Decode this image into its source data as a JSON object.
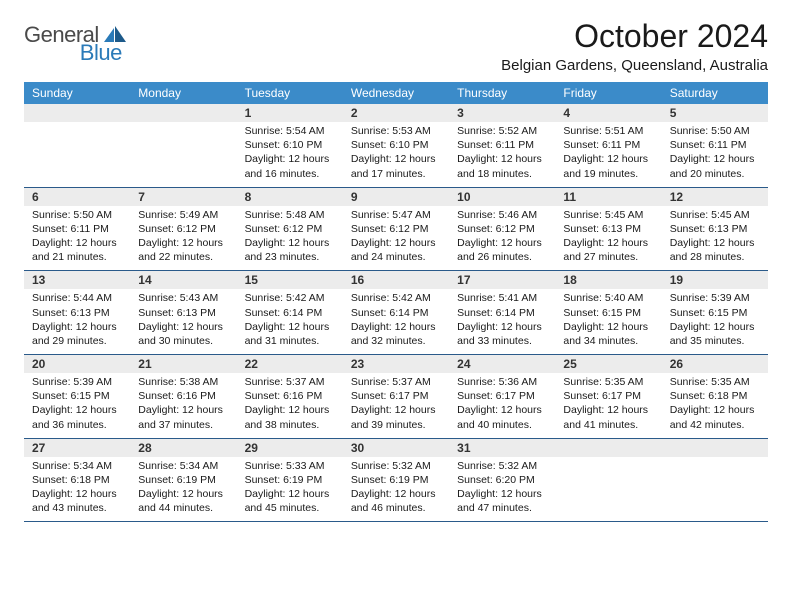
{
  "logo": {
    "text1": "General",
    "text2": "Blue"
  },
  "title": "October 2024",
  "location": "Belgian Gardens, Queensland, Australia",
  "colors": {
    "header_bg": "#3b8bc9",
    "header_text": "#ffffff",
    "daynum_bg": "#ececec",
    "week_border": "#2a5a8a",
    "logo_blue": "#2a7ab8"
  },
  "dayNames": [
    "Sunday",
    "Monday",
    "Tuesday",
    "Wednesday",
    "Thursday",
    "Friday",
    "Saturday"
  ],
  "weeks": [
    [
      null,
      null,
      {
        "n": "1",
        "sr": "5:54 AM",
        "ss": "6:10 PM",
        "dl": "12 hours and 16 minutes."
      },
      {
        "n": "2",
        "sr": "5:53 AM",
        "ss": "6:10 PM",
        "dl": "12 hours and 17 minutes."
      },
      {
        "n": "3",
        "sr": "5:52 AM",
        "ss": "6:11 PM",
        "dl": "12 hours and 18 minutes."
      },
      {
        "n": "4",
        "sr": "5:51 AM",
        "ss": "6:11 PM",
        "dl": "12 hours and 19 minutes."
      },
      {
        "n": "5",
        "sr": "5:50 AM",
        "ss": "6:11 PM",
        "dl": "12 hours and 20 minutes."
      }
    ],
    [
      {
        "n": "6",
        "sr": "5:50 AM",
        "ss": "6:11 PM",
        "dl": "12 hours and 21 minutes."
      },
      {
        "n": "7",
        "sr": "5:49 AM",
        "ss": "6:12 PM",
        "dl": "12 hours and 22 minutes."
      },
      {
        "n": "8",
        "sr": "5:48 AM",
        "ss": "6:12 PM",
        "dl": "12 hours and 23 minutes."
      },
      {
        "n": "9",
        "sr": "5:47 AM",
        "ss": "6:12 PM",
        "dl": "12 hours and 24 minutes."
      },
      {
        "n": "10",
        "sr": "5:46 AM",
        "ss": "6:12 PM",
        "dl": "12 hours and 26 minutes."
      },
      {
        "n": "11",
        "sr": "5:45 AM",
        "ss": "6:13 PM",
        "dl": "12 hours and 27 minutes."
      },
      {
        "n": "12",
        "sr": "5:45 AM",
        "ss": "6:13 PM",
        "dl": "12 hours and 28 minutes."
      }
    ],
    [
      {
        "n": "13",
        "sr": "5:44 AM",
        "ss": "6:13 PM",
        "dl": "12 hours and 29 minutes."
      },
      {
        "n": "14",
        "sr": "5:43 AM",
        "ss": "6:13 PM",
        "dl": "12 hours and 30 minutes."
      },
      {
        "n": "15",
        "sr": "5:42 AM",
        "ss": "6:14 PM",
        "dl": "12 hours and 31 minutes."
      },
      {
        "n": "16",
        "sr": "5:42 AM",
        "ss": "6:14 PM",
        "dl": "12 hours and 32 minutes."
      },
      {
        "n": "17",
        "sr": "5:41 AM",
        "ss": "6:14 PM",
        "dl": "12 hours and 33 minutes."
      },
      {
        "n": "18",
        "sr": "5:40 AM",
        "ss": "6:15 PM",
        "dl": "12 hours and 34 minutes."
      },
      {
        "n": "19",
        "sr": "5:39 AM",
        "ss": "6:15 PM",
        "dl": "12 hours and 35 minutes."
      }
    ],
    [
      {
        "n": "20",
        "sr": "5:39 AM",
        "ss": "6:15 PM",
        "dl": "12 hours and 36 minutes."
      },
      {
        "n": "21",
        "sr": "5:38 AM",
        "ss": "6:16 PM",
        "dl": "12 hours and 37 minutes."
      },
      {
        "n": "22",
        "sr": "5:37 AM",
        "ss": "6:16 PM",
        "dl": "12 hours and 38 minutes."
      },
      {
        "n": "23",
        "sr": "5:37 AM",
        "ss": "6:17 PM",
        "dl": "12 hours and 39 minutes."
      },
      {
        "n": "24",
        "sr": "5:36 AM",
        "ss": "6:17 PM",
        "dl": "12 hours and 40 minutes."
      },
      {
        "n": "25",
        "sr": "5:35 AM",
        "ss": "6:17 PM",
        "dl": "12 hours and 41 minutes."
      },
      {
        "n": "26",
        "sr": "5:35 AM",
        "ss": "6:18 PM",
        "dl": "12 hours and 42 minutes."
      }
    ],
    [
      {
        "n": "27",
        "sr": "5:34 AM",
        "ss": "6:18 PM",
        "dl": "12 hours and 43 minutes."
      },
      {
        "n": "28",
        "sr": "5:34 AM",
        "ss": "6:19 PM",
        "dl": "12 hours and 44 minutes."
      },
      {
        "n": "29",
        "sr": "5:33 AM",
        "ss": "6:19 PM",
        "dl": "12 hours and 45 minutes."
      },
      {
        "n": "30",
        "sr": "5:32 AM",
        "ss": "6:19 PM",
        "dl": "12 hours and 46 minutes."
      },
      {
        "n": "31",
        "sr": "5:32 AM",
        "ss": "6:20 PM",
        "dl": "12 hours and 47 minutes."
      },
      null,
      null
    ]
  ],
  "labels": {
    "sunrise": "Sunrise:",
    "sunset": "Sunset:",
    "daylight": "Daylight:"
  }
}
